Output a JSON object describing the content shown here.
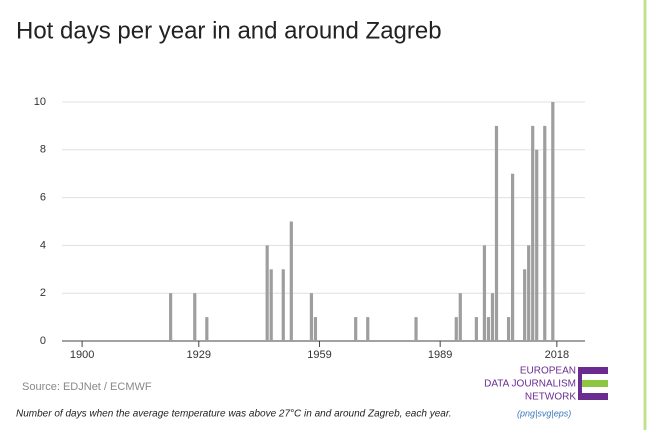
{
  "chart_data": {
    "type": "bar",
    "title": "Hot days per year in and around Zagreb",
    "source": "Source: EDJNet / ECMWF",
    "caption": "Number of days when the average temperature was above 27°C in and around Zagreb, each year.",
    "download_links": "(png|svg|eps)",
    "logo": [
      "EUROPEAN",
      "DATA JOURNALISM",
      "NETWORK"
    ],
    "x": [
      1922,
      1928,
      1931,
      1946,
      1947,
      1950,
      1952,
      1957,
      1958,
      1968,
      1971,
      1983,
      1993,
      1994,
      1998,
      2000,
      2001,
      2002,
      2003,
      2006,
      2007,
      2010,
      2011,
      2012,
      2013,
      2015,
      2017
    ],
    "values": [
      2,
      2,
      1,
      4,
      3,
      3,
      5,
      2,
      1,
      1,
      1,
      1,
      1,
      2,
      1,
      4,
      1,
      2,
      9,
      1,
      7,
      3,
      4,
      9,
      8,
      9,
      10
    ],
    "color": "#9e9e9e",
    "xlim": [
      1895,
      2025
    ],
    "xticks": [
      1900,
      1929,
      1959,
      1989,
      2018
    ],
    "ylim": [
      0,
      10
    ],
    "yticks": [
      0,
      2,
      4,
      6,
      8,
      10
    ],
    "grid": true
  }
}
